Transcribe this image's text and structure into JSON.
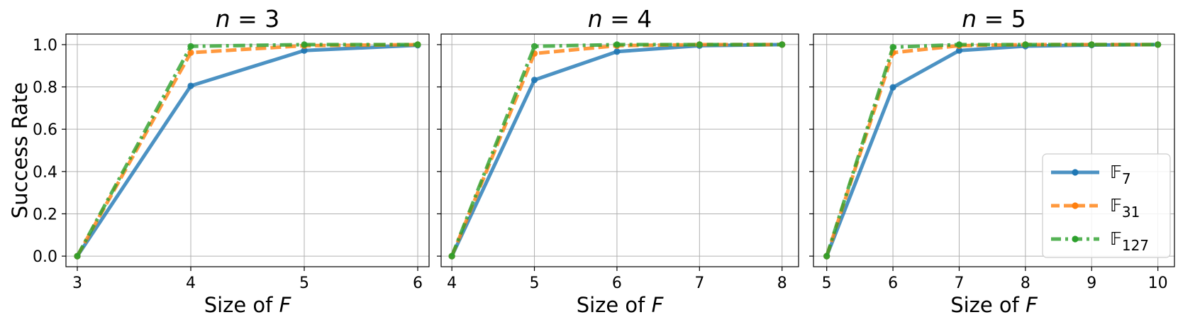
{
  "chart_data": [
    {
      "type": "line",
      "title_prefix": "n",
      "title_value": "3",
      "xlabel_prefix": "Size of ",
      "xlabel_var": "F",
      "ylabel": "Success Rate",
      "x": [
        3,
        4,
        5,
        6
      ],
      "xlim": [
        2.9,
        6.1
      ],
      "ylim": [
        -0.05,
        1.05
      ],
      "yticks": [
        0.0,
        0.2,
        0.4,
        0.6,
        0.8,
        1.0
      ],
      "grid": true,
      "series": [
        {
          "name": "𝔽7",
          "color": "#1f77b4",
          "style": "solid",
          "values": [
            0.0,
            0.805,
            0.972,
            0.997
          ]
        },
        {
          "name": "𝔽31",
          "color": "#ff7f0e",
          "style": "dashed",
          "values": [
            0.0,
            0.962,
            0.995,
            1.0
          ]
        },
        {
          "name": "𝔽127",
          "color": "#2ca02c",
          "style": "dashdot",
          "values": [
            0.0,
            0.992,
            1.0,
            1.0
          ]
        }
      ]
    },
    {
      "type": "line",
      "title_prefix": "n",
      "title_value": "4",
      "xlabel_prefix": "Size of ",
      "xlabel_var": "F",
      "ylabel": "",
      "x": [
        4,
        5,
        6,
        7,
        8
      ],
      "xlim": [
        3.87,
        8.2
      ],
      "ylim": [
        -0.05,
        1.05
      ],
      "yticks": [
        0.0,
        0.2,
        0.4,
        0.6,
        0.8,
        1.0
      ],
      "grid": true,
      "series": [
        {
          "name": "𝔽7",
          "color": "#1f77b4",
          "style": "solid",
          "values": [
            0.0,
            0.833,
            0.967,
            0.995,
            1.0
          ]
        },
        {
          "name": "𝔽31",
          "color": "#ff7f0e",
          "style": "dashed",
          "values": [
            0.0,
            0.958,
            0.995,
            1.0,
            1.0
          ]
        },
        {
          "name": "𝔽127",
          "color": "#2ca02c",
          "style": "dashdot",
          "values": [
            0.0,
            0.992,
            1.0,
            1.0,
            1.0
          ]
        }
      ]
    },
    {
      "type": "line",
      "title_prefix": "n",
      "title_value": "5",
      "xlabel_prefix": "Size of ",
      "xlabel_var": "F",
      "ylabel": "",
      "x": [
        5,
        6,
        7,
        8,
        9,
        10
      ],
      "xlim": [
        4.8,
        10.25
      ],
      "ylim": [
        -0.05,
        1.05
      ],
      "yticks": [
        0.0,
        0.2,
        0.4,
        0.6,
        0.8,
        1.0
      ],
      "grid": true,
      "legend_position": "lower-right",
      "series": [
        {
          "name": "𝔽7",
          "color": "#1f77b4",
          "style": "solid",
          "values": [
            0.0,
            0.798,
            0.972,
            0.993,
            0.998,
            1.0
          ]
        },
        {
          "name": "𝔽31",
          "color": "#ff7f0e",
          "style": "dashed",
          "values": [
            0.0,
            0.962,
            0.995,
            1.0,
            1.0,
            1.0
          ]
        },
        {
          "name": "𝔽127",
          "color": "#2ca02c",
          "style": "dashdot",
          "values": [
            0.0,
            0.988,
            1.0,
            1.0,
            1.0,
            1.0
          ]
        }
      ]
    }
  ],
  "legend": {
    "position": "lower-right",
    "entries": [
      {
        "symbol": "𝔽",
        "sub": "7",
        "color": "#1f77b4",
        "style": "solid"
      },
      {
        "symbol": "𝔽",
        "sub": "31",
        "color": "#ff7f0e",
        "style": "dashed"
      },
      {
        "symbol": "𝔽",
        "sub": "127",
        "color": "#2ca02c",
        "style": "dashdot"
      }
    ]
  }
}
